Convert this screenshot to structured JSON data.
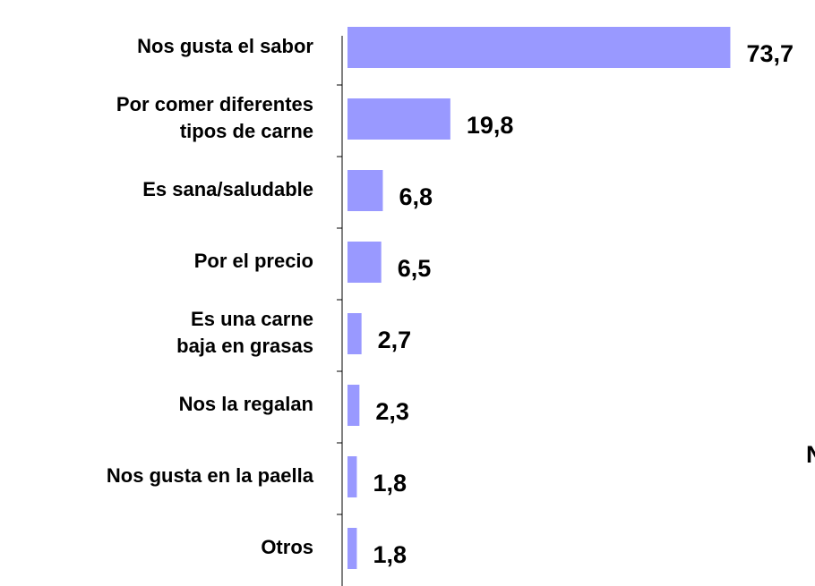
{
  "chart_data": {
    "type": "hbar",
    "categories": [
      "Nos gusta el sabor",
      "Por comer diferentes\ntipos de carne",
      "Es sana/saludable",
      "Por el precio",
      "Es una carne\nbaja en grasas",
      "Nos la regalan",
      "Nos gusta en la paella",
      "Otros"
    ],
    "values": [
      73.7,
      19.8,
      6.8,
      6.5,
      2.7,
      2.3,
      1.8,
      1.8
    ],
    "value_labels": [
      "73,7",
      "19,8",
      "6,8",
      "6,5",
      "2,7",
      "2,3",
      "1,8",
      "1,8"
    ],
    "color": "#9999ff",
    "annotation": "N"
  }
}
